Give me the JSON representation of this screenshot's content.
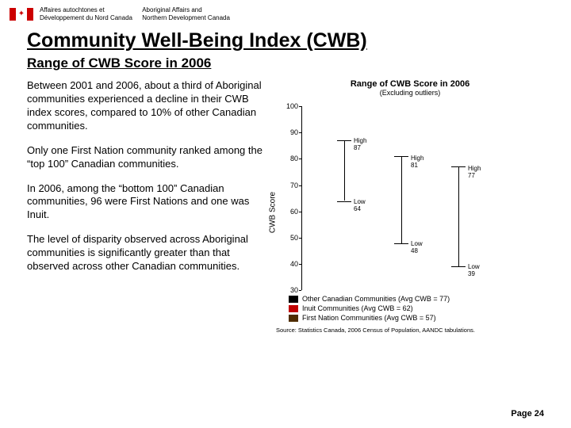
{
  "header": {
    "dept_fr_line1": "Affaires autochtones et",
    "dept_fr_line2": "Développement du Nord Canada",
    "dept_en_line1": "Aboriginal Affairs and",
    "dept_en_line2": "Northern Development Canada"
  },
  "title": "Community Well-Being Index (CWB)",
  "subtitle": "Range of CWB Score in 2006",
  "paragraphs": {
    "p1": "Between 2001 and 2006, about a third of Aboriginal communities experienced a decline in their CWB index scores, compared to 10% of other Canadian communities.",
    "p2": "Only one First Nation community ranked among the “top 100” Canadian communities.",
    "p3": "In 2006, among the “bottom 100” Canadian communities, 96 were First Nations and one was Inuit.",
    "p4": "The level of disparity observed across Aboriginal communities is significantly greater than that observed across other Canadian communities."
  },
  "chart": {
    "title": "Range of CWB Score in 2006",
    "subtitle": "(Excluding outliers)",
    "ylabel": "CWB Score",
    "ylim": [
      30,
      100
    ],
    "ytick_step": 10,
    "series": [
      {
        "name": "Other Canadian Communities",
        "avg": 77,
        "low": 64,
        "high": 87,
        "color": "#000000"
      },
      {
        "name": "Inuit Communities",
        "avg": 62,
        "low": 48,
        "high": 81,
        "color": "#c00000"
      },
      {
        "name": "First Nation Communities",
        "avg": 57,
        "low": 39,
        "high": 77,
        "color": "#4f2d00"
      }
    ],
    "legend": [
      {
        "swatch": "#000000",
        "text": "Other Canadian Communities (Avg CWB = 77)"
      },
      {
        "swatch": "#c00000",
        "text": "Inuit Communities (Avg CWB = 62)"
      },
      {
        "swatch": "#4f2d00",
        "text": "First Nation Communities (Avg CWB = 57)"
      }
    ],
    "labels": {
      "high87": "High 87",
      "high81": "High 81",
      "high77": "High 77",
      "low64": "Low 64",
      "low48": "Low 48",
      "low39": "Low 39"
    },
    "label_fontsize": 8,
    "background_color": "#ffffff",
    "axis_color": "#000000"
  },
  "source": "Source: Statistics Canada, 2006 Census of Population, AANDC tabulations.",
  "page_footer": "Page 24"
}
